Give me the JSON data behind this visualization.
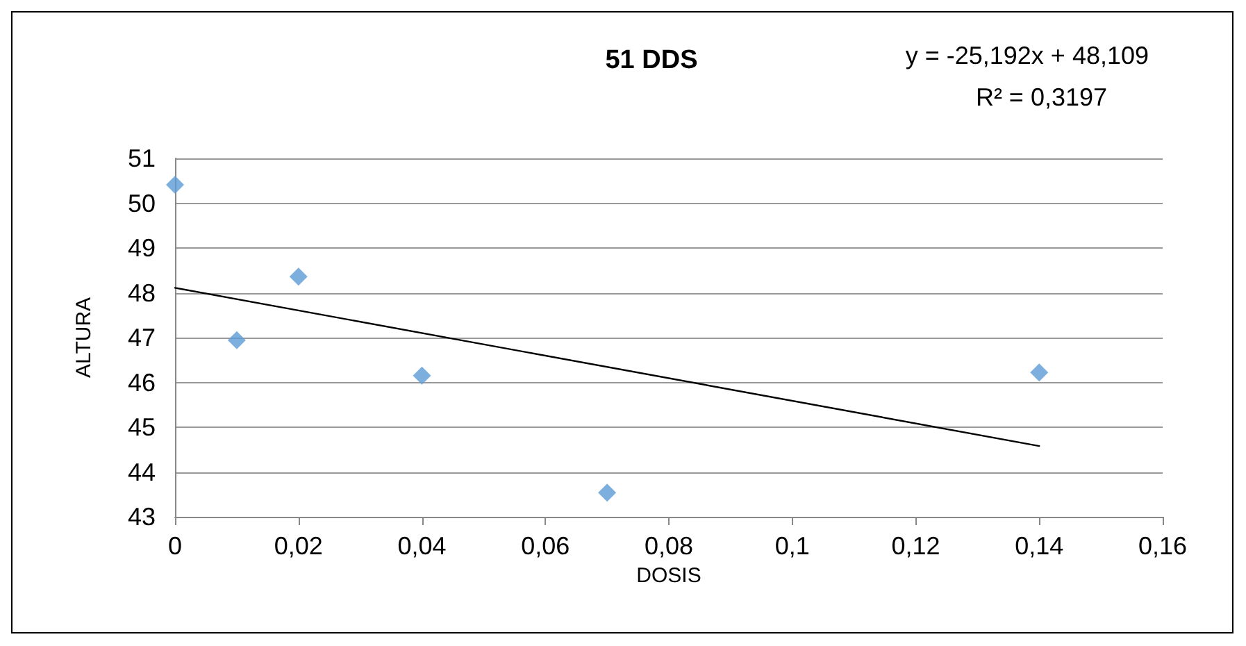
{
  "chart_data": {
    "type": "scatter",
    "title": "51 DDS",
    "xlabel": "DOSIS",
    "ylabel": "ALTURA",
    "annotations": [
      "y = -25,192x + 48,109",
      "R² = 0,3197"
    ],
    "series": [
      {
        "color": "#5b9bd5",
        "marker": "diamond",
        "x": [
          0,
          0.01,
          0.02,
          0.04,
          0.07,
          0.14
        ],
        "values": [
          50.41,
          46.94,
          48.36,
          46.15,
          43.54,
          46.22
        ]
      },
      {
        "type": "line",
        "color": "#000000",
        "marker": "none",
        "line_style": "solid",
        "x": [
          0,
          0.14
        ],
        "values": [
          48.11,
          44.58
        ]
      }
    ],
    "xlim": [
      0,
      0.16
    ],
    "xticks": [
      0,
      {
        "value": 0.02,
        "label": "0,02"
      },
      {
        "value": 0.04,
        "label": "0,04"
      },
      {
        "value": 0.06,
        "label": "0,06"
      },
      {
        "value": 0.08,
        "label": "0,08"
      },
      {
        "value": 0.1,
        "label": "0,1"
      },
      {
        "value": 0.12,
        "label": "0,12"
      },
      {
        "value": 0.14,
        "label": "0,14"
      },
      {
        "value": 0.16,
        "label": "0,16"
      }
    ],
    "ylim": [
      43,
      51
    ],
    "yticks": [
      43,
      44,
      45,
      46,
      47,
      48,
      49,
      50,
      51
    ],
    "grid": "y"
  }
}
